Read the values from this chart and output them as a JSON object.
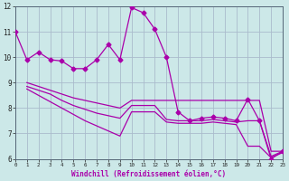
{
  "background_color": "#cce8e8",
  "grid_color": "#aabbcc",
  "line_color": "#aa00aa",
  "xlabel": "Windchill (Refroidissement éolien,°C)",
  "xlim": [
    0,
    23
  ],
  "ylim": [
    6,
    12
  ],
  "yticks": [
    6,
    7,
    8,
    9,
    10,
    11,
    12
  ],
  "xticks": [
    0,
    1,
    2,
    3,
    4,
    5,
    6,
    7,
    8,
    9,
    10,
    11,
    12,
    13,
    14,
    15,
    16,
    17,
    18,
    19,
    20,
    21,
    22,
    23
  ],
  "series": [
    {
      "x": [
        0,
        1,
        2,
        3,
        4,
        5,
        6,
        7,
        8,
        9,
        10,
        11,
        12,
        13,
        14,
        15,
        16,
        17,
        18,
        19,
        20,
        21,
        22,
        23
      ],
      "y": [
        11.0,
        9.9,
        10.2,
        9.9,
        9.85,
        9.55,
        9.55,
        9.9,
        10.5,
        9.9,
        11.95,
        11.75,
        11.1,
        10.0,
        7.85,
        7.5,
        7.6,
        7.65,
        7.6,
        7.5,
        8.35,
        7.5,
        6.0,
        6.3
      ],
      "has_markers": true
    },
    {
      "x": [
        1,
        2,
        3,
        4,
        5,
        6,
        7,
        8,
        9,
        10,
        11,
        12,
        13,
        14,
        15,
        16,
        17,
        18,
        19,
        20,
        21,
        22,
        23
      ],
      "y": [
        9.0,
        8.85,
        8.7,
        8.55,
        8.4,
        8.3,
        8.2,
        8.1,
        8.0,
        8.3,
        8.3,
        8.3,
        8.3,
        8.3,
        8.3,
        8.3,
        8.3,
        8.3,
        8.3,
        8.3,
        8.3,
        6.3,
        6.3
      ],
      "has_markers": false
    },
    {
      "x": [
        1,
        2,
        3,
        4,
        5,
        6,
        7,
        8,
        9,
        10,
        11,
        12,
        13,
        14,
        15,
        16,
        17,
        18,
        19,
        20,
        21,
        22,
        23
      ],
      "y": [
        8.85,
        8.7,
        8.55,
        8.3,
        8.1,
        7.95,
        7.8,
        7.7,
        7.6,
        8.1,
        8.1,
        8.1,
        7.55,
        7.5,
        7.5,
        7.5,
        7.55,
        7.5,
        7.45,
        7.5,
        7.5,
        6.1,
        6.3
      ],
      "has_markers": false
    },
    {
      "x": [
        1,
        2,
        3,
        4,
        5,
        6,
        7,
        8,
        9,
        10,
        11,
        12,
        13,
        14,
        15,
        16,
        17,
        18,
        19,
        20,
        21,
        22,
        23
      ],
      "y": [
        8.75,
        8.5,
        8.25,
        8.0,
        7.75,
        7.5,
        7.3,
        7.1,
        6.9,
        7.85,
        7.85,
        7.85,
        7.45,
        7.4,
        7.4,
        7.4,
        7.45,
        7.4,
        7.35,
        6.5,
        6.5,
        6.05,
        6.25
      ],
      "has_markers": false
    }
  ]
}
